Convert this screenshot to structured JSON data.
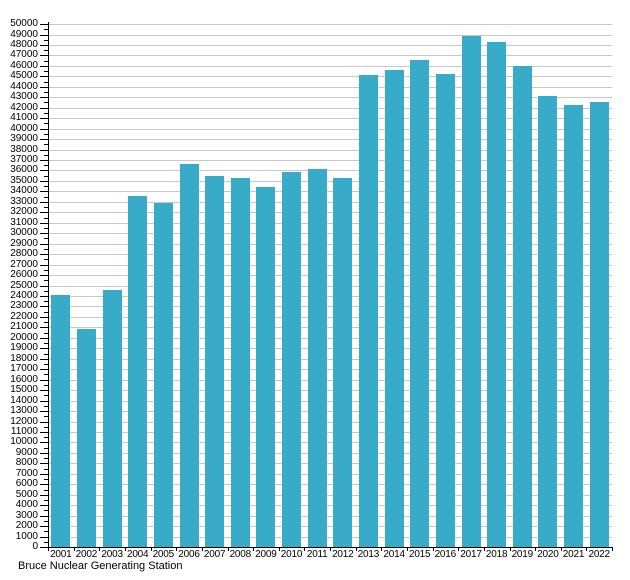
{
  "chart_data": {
    "type": "bar",
    "title": "Bruce Nuclear Generating Station",
    "categories": [
      "2001",
      "2002",
      "2003",
      "2004",
      "2005",
      "2006",
      "2007",
      "2008",
      "2009",
      "2010",
      "2011",
      "2012",
      "2013",
      "2014",
      "2015",
      "2016",
      "2017",
      "2018",
      "2019",
      "2020",
      "2021",
      "2022"
    ],
    "values": [
      24100,
      20800,
      24600,
      33600,
      32900,
      36600,
      35500,
      35300,
      34400,
      35900,
      36100,
      35300,
      45100,
      45600,
      46600,
      45200,
      48900,
      48300,
      46000,
      43100,
      42300,
      42500
    ],
    "xlabel": "",
    "ylabel": "",
    "ylim": [
      0,
      50000
    ],
    "ytick_major_step": 1000,
    "ytick_minor_step": 500,
    "grid": true,
    "legend": "none",
    "colors": {
      "bar": "#38ABC9",
      "grid": "#c8c8c8",
      "axis": "#000000",
      "text": "#000000",
      "background": "#ffffff"
    }
  }
}
